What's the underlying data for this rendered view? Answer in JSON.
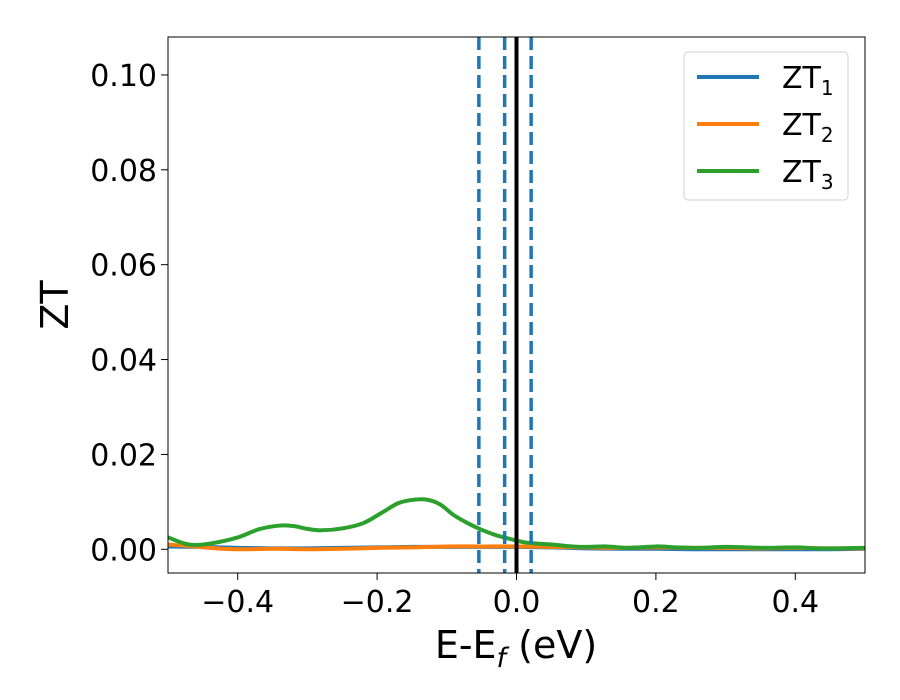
{
  "chart_data": {
    "type": "line",
    "xlabel": "E-E",
    "xlabel_sub": "f",
    "xlabel_unit": " (eV)",
    "ylabel": "ZT",
    "xlim": [
      -0.5,
      0.5
    ],
    "ylim": [
      -0.005,
      0.108
    ],
    "xticks": [
      -0.4,
      -0.2,
      0.0,
      0.2,
      0.4
    ],
    "xtick_labels": [
      "−0.4",
      "−0.2",
      "0.0",
      "0.2",
      "0.4"
    ],
    "yticks": [
      0.0,
      0.02,
      0.04,
      0.06,
      0.08,
      0.1
    ],
    "ytick_labels": [
      "0.00",
      "0.02",
      "0.04",
      "0.06",
      "0.08",
      "0.10"
    ],
    "grid": false,
    "legend_position": "top-right",
    "vlines": [
      {
        "x": -0.054,
        "style": "dashed",
        "color": "#1f77b4"
      },
      {
        "x": -0.017,
        "style": "dashed",
        "color": "#1f77b4"
      },
      {
        "x": 0.0,
        "style": "solid",
        "color": "#000000"
      },
      {
        "x": 0.021,
        "style": "dashed",
        "color": "#1f77b4"
      }
    ],
    "series": [
      {
        "name": "ZT",
        "name_sub": "1",
        "color": "#1f77b4",
        "x": [
          -0.5,
          -0.45,
          -0.4,
          -0.35,
          -0.3,
          -0.25,
          -0.2,
          -0.15,
          -0.1,
          -0.05,
          0.0,
          0.05,
          0.1,
          0.15,
          0.2,
          0.25,
          0.3,
          0.35,
          0.4,
          0.45,
          0.5
        ],
        "y": [
          0.0006,
          0.0005,
          0.0003,
          0.0002,
          0.0002,
          0.0003,
          0.0004,
          0.0005,
          0.0005,
          0.0005,
          0.0005,
          0.0004,
          0.0002,
          0.0001,
          0.0001,
          0.0,
          0.0,
          0.0,
          0.0,
          0.0,
          0.0001
        ]
      },
      {
        "name": "ZT",
        "name_sub": "2",
        "color": "#ff7f0e",
        "x": [
          -0.5,
          -0.47,
          -0.43,
          -0.4,
          -0.35,
          -0.3,
          -0.25,
          -0.2,
          -0.15,
          -0.1,
          -0.05,
          0.0,
          0.05,
          0.1,
          0.15,
          0.2,
          0.25,
          0.3,
          0.35,
          0.4,
          0.45,
          0.5
        ],
        "y": [
          0.001,
          0.0007,
          0.0002,
          0.0,
          0.0001,
          0.0,
          0.0001,
          0.0003,
          0.0004,
          0.0006,
          0.0006,
          0.0006,
          0.0005,
          0.0004,
          0.0003,
          0.0004,
          0.0003,
          0.0003,
          0.0002,
          0.0003,
          0.0002,
          0.0002
        ]
      },
      {
        "name": "ZT",
        "name_sub": "3",
        "color": "#2ca02c",
        "x": [
          -0.5,
          -0.47,
          -0.44,
          -0.4,
          -0.37,
          -0.34,
          -0.32,
          -0.3,
          -0.28,
          -0.25,
          -0.22,
          -0.19,
          -0.17,
          -0.15,
          -0.13,
          -0.11,
          -0.09,
          -0.07,
          -0.05,
          -0.03,
          -0.01,
          0.01,
          0.03,
          0.05,
          0.08,
          0.1,
          0.13,
          0.16,
          0.2,
          0.23,
          0.26,
          0.3,
          0.33,
          0.36,
          0.4,
          0.43,
          0.46,
          0.5
        ],
        "y": [
          0.0025,
          0.001,
          0.0012,
          0.0025,
          0.0042,
          0.005,
          0.0049,
          0.0043,
          0.004,
          0.0044,
          0.0055,
          0.008,
          0.0097,
          0.0104,
          0.0105,
          0.0095,
          0.0072,
          0.0055,
          0.0041,
          0.003,
          0.0022,
          0.0015,
          0.0012,
          0.001,
          0.0006,
          0.0005,
          0.0006,
          0.0003,
          0.0006,
          0.0004,
          0.0003,
          0.0005,
          0.0004,
          0.0003,
          0.0004,
          0.0002,
          0.0002,
          0.0003
        ]
      }
    ]
  }
}
